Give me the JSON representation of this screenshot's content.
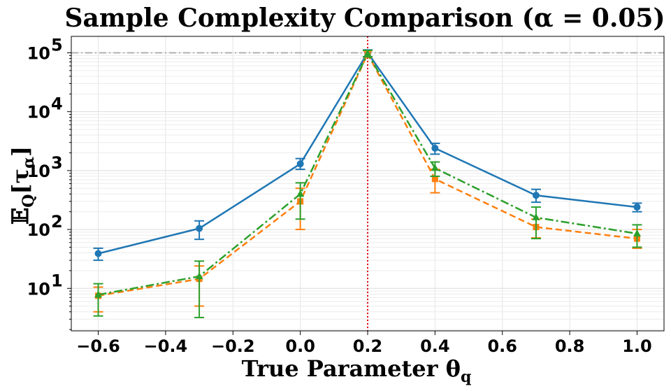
{
  "chart_data": {
    "type": "line",
    "title": "Sample Complexity Comparison (α = 0.05)",
    "xlabel": "True Parameter  θ_q",
    "ylabel": "𝔼_Q[τ_α]",
    "yscale": "log",
    "xlim": [
      -0.68,
      1.08
    ],
    "ylim": [
      1.9,
      190000
    ],
    "xticks": [
      "−0.6",
      "−0.4",
      "−0.2",
      "0.0",
      "0.2",
      "0.4",
      "0.6",
      "0.8",
      "1.0"
    ],
    "yticks": [
      "10^1",
      "10^2",
      "10^3",
      "10^4",
      "10^5"
    ],
    "grid": true,
    "x": [
      -0.6,
      -0.3,
      0.0,
      0.2,
      0.4,
      0.7,
      1.0
    ],
    "reference_lines": [
      {
        "orientation": "horizontal",
        "value": 100000,
        "color": "#b0b0b0",
        "style": "dash-dot"
      },
      {
        "orientation": "vertical",
        "value": 0.2,
        "color": "#e8000b",
        "style": "dotted"
      }
    ],
    "series": [
      {
        "color": "#1f77b4",
        "linestyle": "solid",
        "marker": "circle",
        "values": [
          39,
          104,
          1300,
          100000,
          2400,
          380,
          240
        ],
        "err_low": [
          30,
          68,
          1050,
          86000,
          1900,
          290,
          200
        ],
        "err_high": [
          48,
          140,
          1600,
          112000,
          2900,
          480,
          280
        ]
      },
      {
        "color": "#ff7f0e",
        "linestyle": "dashed",
        "marker": "square",
        "values": [
          7.5,
          14.5,
          300,
          96000,
          720,
          110,
          70
        ],
        "err_low": [
          4,
          5,
          100,
          84000,
          420,
          72,
          48
        ],
        "err_high": [
          10.5,
          24,
          500,
          108000,
          1050,
          150,
          100
        ]
      },
      {
        "color": "#2ca02c",
        "linestyle": "dashdot",
        "marker": "triangle",
        "values": [
          7.8,
          16,
          400,
          97000,
          1100,
          160,
          85
        ],
        "err_low": [
          3.4,
          3.2,
          150,
          85000,
          800,
          70,
          50
        ],
        "err_high": [
          12,
          29,
          620,
          110000,
          1400,
          240,
          120
        ]
      }
    ]
  }
}
